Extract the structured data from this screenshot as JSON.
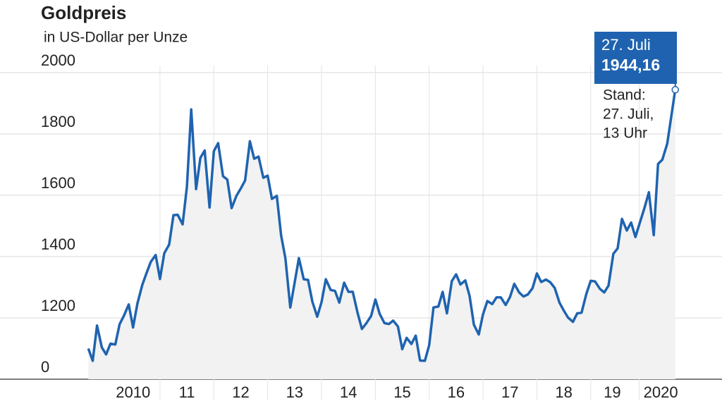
{
  "chart_data": {
    "type": "area-line",
    "title": "Goldpreis",
    "subtitle": "in US-Dollar per Unze",
    "color": "#1f63b0",
    "fill": "#f2f2f2",
    "grid": true,
    "ylim": [
      1000,
      2000
    ],
    "yticks": [
      {
        "value": 1000,
        "label": "0"
      },
      1200,
      1400,
      1600,
      1800,
      2000
    ],
    "xlim": [
      2009.6,
      2020.6
    ],
    "xticks": [
      {
        "value": 2010.5,
        "label": "2010"
      },
      {
        "value": 2011.5,
        "label": "11"
      },
      {
        "value": 2012.5,
        "label": "12"
      },
      {
        "value": 2013.5,
        "label": "13"
      },
      {
        "value": 2014.5,
        "label": "14"
      },
      {
        "value": 2015.5,
        "label": "15"
      },
      {
        "value": 2016.5,
        "label": "16"
      },
      {
        "value": 2017.5,
        "label": "17"
      },
      {
        "value": 2018.5,
        "label": "18"
      },
      {
        "value": 2019.4,
        "label": "19"
      },
      {
        "value": 2020.3,
        "label": "2020"
      }
    ],
    "x": [
      2009.67,
      2009.75,
      2009.83,
      2009.92,
      2010,
      2010.08,
      2010.17,
      2010.25,
      2010.33,
      2010.42,
      2010.5,
      2010.58,
      2010.67,
      2010.75,
      2010.83,
      2010.92,
      2011,
      2011.08,
      2011.17,
      2011.25,
      2011.33,
      2011.42,
      2011.5,
      2011.58,
      2011.67,
      2011.75,
      2011.83,
      2011.92,
      2012,
      2012.08,
      2012.17,
      2012.25,
      2012.33,
      2012.42,
      2012.5,
      2012.58,
      2012.67,
      2012.75,
      2012.83,
      2012.92,
      2013,
      2013.08,
      2013.17,
      2013.25,
      2013.33,
      2013.42,
      2013.5,
      2013.58,
      2013.67,
      2013.75,
      2013.83,
      2013.92,
      2014,
      2014.08,
      2014.17,
      2014.25,
      2014.33,
      2014.42,
      2014.5,
      2014.58,
      2014.67,
      2014.75,
      2014.83,
      2014.92,
      2015,
      2015.08,
      2015.17,
      2015.25,
      2015.33,
      2015.42,
      2015.5,
      2015.58,
      2015.67,
      2015.75,
      2015.83,
      2015.92,
      2016,
      2016.08,
      2016.17,
      2016.25,
      2016.33,
      2016.42,
      2016.5,
      2016.58,
      2016.67,
      2016.75,
      2016.83,
      2016.92,
      2017,
      2017.08,
      2017.17,
      2017.25,
      2017.33,
      2017.42,
      2017.5,
      2017.58,
      2017.67,
      2017.75,
      2017.83,
      2017.92,
      2018,
      2018.08,
      2018.17,
      2018.25,
      2018.33,
      2018.42,
      2018.5,
      2018.58,
      2018.67,
      2018.75,
      2018.83,
      2018.92,
      2019,
      2019.08,
      2019.17,
      2019.25,
      2019.33,
      2019.42,
      2019.5,
      2019.58,
      2019.67,
      2019.75,
      2019.83,
      2019.92,
      2020,
      2020.08,
      2020.17,
      2020.25,
      2020.33,
      2020.42,
      2020.57
    ],
    "values": [
      1100,
      1060,
      1175,
      1104,
      1081,
      1116,
      1113,
      1179,
      1207,
      1244,
      1169,
      1246,
      1307,
      1346,
      1383,
      1405,
      1327,
      1411,
      1439,
      1535,
      1536,
      1505,
      1628,
      1880,
      1620,
      1722,
      1746,
      1560,
      1744,
      1770,
      1662,
      1651,
      1558,
      1598,
      1622,
      1648,
      1776,
      1719,
      1726,
      1657,
      1664,
      1588,
      1598,
      1469,
      1394,
      1234,
      1314,
      1395,
      1326,
      1324,
      1253,
      1204,
      1251,
      1326,
      1291,
      1288,
      1250,
      1315,
      1285,
      1285,
      1216,
      1164,
      1182,
      1206,
      1260,
      1213,
      1183,
      1180,
      1191,
      1172,
      1098,
      1135,
      1115,
      1142,
      1061,
      1060,
      1111,
      1234,
      1237,
      1285,
      1215,
      1320,
      1342,
      1309,
      1322,
      1272,
      1178,
      1146,
      1212,
      1255,
      1245,
      1267,
      1267,
      1242,
      1268,
      1311,
      1283,
      1270,
      1276,
      1297,
      1345,
      1317,
      1325,
      1316,
      1298,
      1250,
      1224,
      1201,
      1187,
      1215,
      1217,
      1279,
      1321,
      1319,
      1295,
      1283,
      1305,
      1409,
      1427,
      1523,
      1485,
      1511,
      1464,
      1515,
      1560,
      1610,
      1470,
      1702,
      1716,
      1768,
      1944.16
    ],
    "annotation": {
      "date": "27. Juli",
      "value_label": "1944,16",
      "note": [
        "Stand:",
        "27. Juli,",
        "13 Uhr"
      ]
    }
  }
}
